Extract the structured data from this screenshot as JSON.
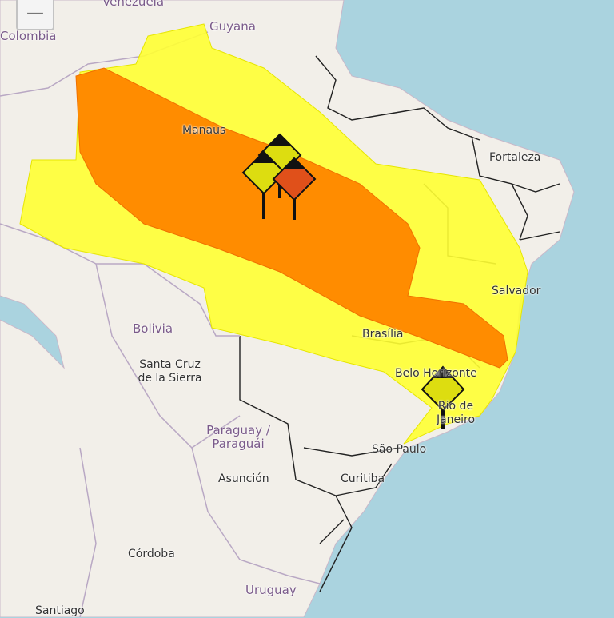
{
  "map": {
    "zoom_out_label": "—",
    "colors": {
      "sea": "#aad3df",
      "land": "#f2efe9",
      "alert_yellow": "#ffff33",
      "alert_orange": "#ff8c00",
      "alert_red": "#e0501a",
      "border": "#222222"
    },
    "labels": {
      "venezuela": "Venezuela",
      "colombia": "Colombia",
      "guyana": "Guyana",
      "manaus": "Manaus",
      "fortaleza": "Fortaleza",
      "salvador": "Salvador",
      "bolivia": "Bolivia",
      "santa_cruz": "Santa Cruz de la Sierra",
      "brasilia": "Brasília",
      "belo_horizonte": "Belo Horizonte",
      "rio": "Rio de Janeiro",
      "sao_paulo": "São Paulo",
      "paraguay": "Paraguay / Paraguái",
      "asuncion": "Asunción",
      "curitiba": "Curitiba",
      "cordoba": "Córdoba",
      "uruguay": "Uruguay",
      "santiago": "Santiago"
    },
    "markers": [
      {
        "icon": "storm-warning-icon",
        "level": "yellow"
      },
      {
        "icon": "storm-warning-icon",
        "level": "yellow"
      },
      {
        "icon": "storm-warning-icon",
        "level": "orange"
      },
      {
        "icon": "storm-warning-icon",
        "level": "yellow"
      }
    ]
  }
}
